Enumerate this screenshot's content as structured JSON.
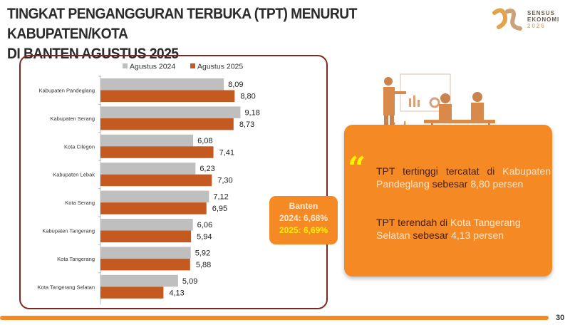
{
  "title": {
    "line1": "TINGKAT PENGANGGURAN TERBUKA (TPT) MENURUT KABUPATEN/KOTA",
    "line2": "DI BANTEN AGUSTUS 2025"
  },
  "logo": {
    "line1": "SENSUS",
    "line2": "EKONOMI",
    "line3": "2026"
  },
  "chart_data": {
    "type": "bar",
    "orientation": "horizontal",
    "categories": [
      "Kabupaten Pandeglang",
      "Kabupaten Serang",
      "Kota Cilegon",
      "Kabupaten Lebak",
      "Kota Serang",
      "Kabupaten Tangerang",
      "Kota Tangerang",
      "Kota Tangerang Selatan"
    ],
    "series": [
      {
        "name": "Agustus 2024",
        "color": "#bfbfbf",
        "values": [
          8.09,
          9.18,
          6.08,
          6.23,
          7.12,
          6.06,
          5.92,
          5.09
        ],
        "labels": [
          "8,09",
          "9,18",
          "6,08",
          "6,23",
          "7,12",
          "6,06",
          "5,92",
          "5,09"
        ]
      },
      {
        "name": "Agustus 2025",
        "color": "#c55a20",
        "values": [
          8.8,
          8.73,
          7.41,
          7.3,
          6.95,
          5.94,
          5.88,
          4.13
        ],
        "labels": [
          "8,80",
          "8,73",
          "7,41",
          "7,30",
          "6,95",
          "5,94",
          "5,88",
          "4,13"
        ]
      }
    ],
    "legend": "top",
    "xlim": [
      0,
      10
    ]
  },
  "banten": {
    "title": "Banten",
    "y2024": "2024: 6,68%",
    "y2025": "2025: 6,69%"
  },
  "highlight": {
    "p1": {
      "a": "TPT tertinggi tercatat di ",
      "b": "Kabupaten Pandeglang",
      "c": " sebesar ",
      "d": "8,80 persen"
    },
    "p2": {
      "a": "TPT terendah di ",
      "b": "Kota Tangerang Selatan",
      "c": " sebesar ",
      "d": "4,13 persen"
    }
  },
  "page_number": "30"
}
